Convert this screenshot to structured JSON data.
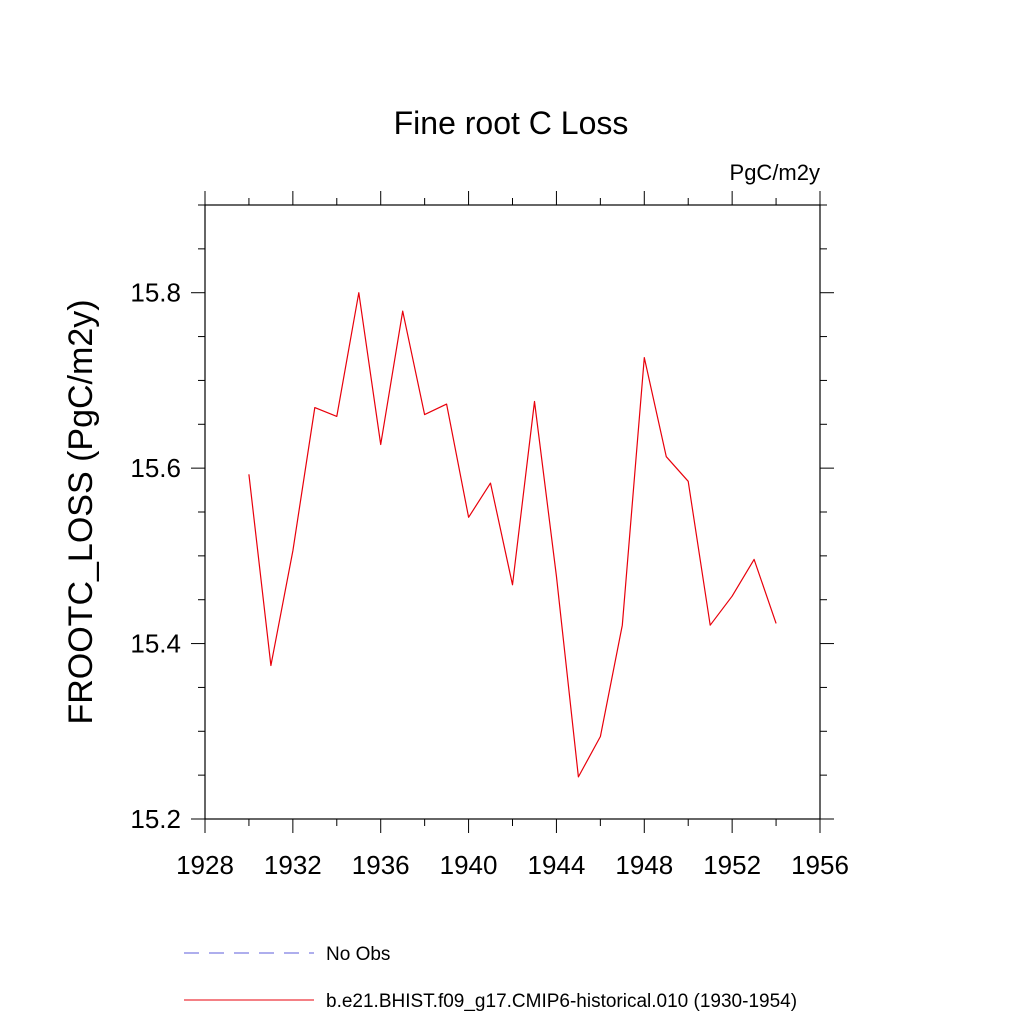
{
  "chart_data": {
    "type": "line",
    "title": "Fine root C Loss",
    "units_label": "PgC/m2y",
    "ylabel": "FROOTC_LOSS  (PgC/m2y)",
    "xlabel": "",
    "xlim": [
      1928,
      1956
    ],
    "ylim": [
      15.2,
      15.9
    ],
    "x_ticks": [
      1928,
      1932,
      1936,
      1940,
      1944,
      1948,
      1952,
      1956
    ],
    "x_tick_labels": [
      "1928",
      "1932",
      "1936",
      "1940",
      "1944",
      "1948",
      "1952",
      "1956"
    ],
    "y_ticks": [
      15.2,
      15.4,
      15.6,
      15.8
    ],
    "y_tick_labels": [
      "15.2",
      "15.4",
      "15.6",
      "15.8"
    ],
    "y_minor_step": 0.05,
    "x_minor_step": 2,
    "grid": false,
    "legend_position": "bottom",
    "series": [
      {
        "name": "b.e21.BHIST.f09_g17.CMIP6-historical.010 (1930-1954)",
        "color": "#e8000b",
        "style": "solid",
        "x": [
          1930,
          1931,
          1932,
          1933,
          1934,
          1935,
          1936,
          1937,
          1938,
          1939,
          1940,
          1941,
          1942,
          1943,
          1944,
          1945,
          1946,
          1947,
          1948,
          1949,
          1950,
          1951,
          1952,
          1953,
          1954
        ],
        "values": [
          15.593,
          15.375,
          15.506,
          15.669,
          15.659,
          15.8,
          15.627,
          15.779,
          15.661,
          15.673,
          15.544,
          15.583,
          15.467,
          15.676,
          15.477,
          15.248,
          15.294,
          15.421,
          15.726,
          15.613,
          15.585,
          15.421,
          15.454,
          15.496,
          15.423
        ]
      }
    ],
    "legend": [
      {
        "label": "No Obs",
        "color": "#5c5cdb",
        "style": "dashed"
      },
      {
        "label": "b.e21.BHIST.f09_g17.CMIP6-historical.010 (1930-1954)",
        "color": "#e8000b",
        "style": "solid"
      }
    ]
  }
}
